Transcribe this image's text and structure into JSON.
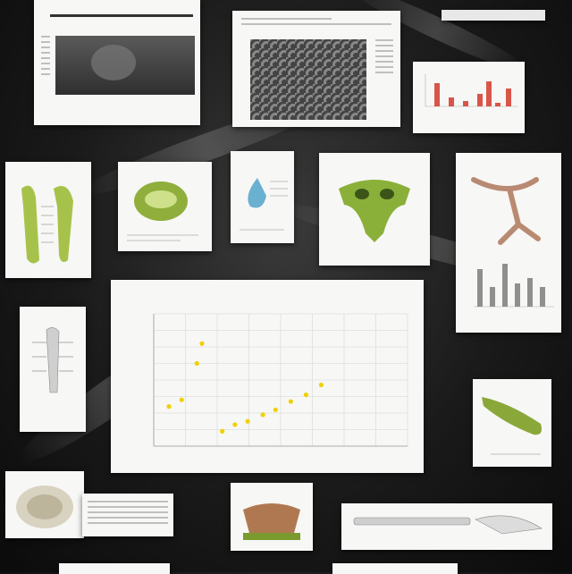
{
  "icons": {
    "card1": "ct-scan-pelvis-icon",
    "card2": "cellular-texture-icon",
    "card4": "bone-illustration-icon",
    "card5": "green-organ-icon",
    "card6": "blue-organ-icon",
    "card7": "green-skull-icon",
    "card8": "bronchial-tree-icon",
    "card10": "spine-illustration-icon",
    "card11": "green-organ-elongated-icon",
    "card12": "brain-specimen-icon",
    "card13": "pelvis-specimen-icon",
    "card14": "long-bone-icon"
  },
  "colors": {
    "background": "#141414",
    "card": "#f7f7f5",
    "accent_red": "#d9554a",
    "accent_green": "#8aa83a",
    "scatter_point": "#f0d000",
    "bar_gray": "#8f8f8f"
  },
  "chart_data": {
    "type": "scatter",
    "title": "",
    "xlabel": "",
    "ylabel": "",
    "xlim": [
      0,
      10
    ],
    "ylim": [
      0,
      8
    ],
    "grid": true,
    "series": [
      {
        "x": [
          0.6,
          1.1,
          1.7,
          1.9,
          2.7,
          3.2,
          3.7,
          4.3,
          4.8,
          5.4,
          6.0,
          6.6
        ],
        "y": [
          2.4,
          2.8,
          5.0,
          6.2,
          0.9,
          1.3,
          1.5,
          1.9,
          2.2,
          2.7,
          3.1,
          3.7
        ]
      }
    ]
  }
}
